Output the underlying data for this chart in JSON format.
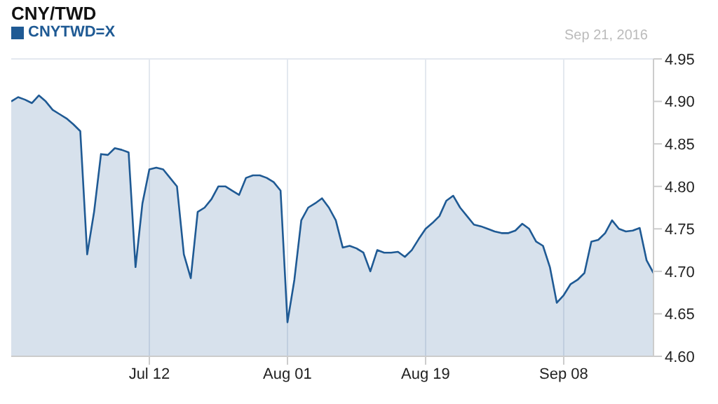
{
  "chart_data": {
    "type": "area",
    "title": "CNY/TWD",
    "subtitle": "Sep 21, 2016",
    "categories": [
      null,
      null,
      null,
      null,
      null,
      null,
      null,
      null,
      null,
      null,
      null,
      null,
      null,
      null,
      null,
      null,
      null,
      null,
      null,
      null,
      "Jul 12",
      null,
      null,
      null,
      null,
      null,
      null,
      null,
      null,
      null,
      null,
      null,
      null,
      null,
      null,
      null,
      null,
      null,
      null,
      null,
      "Aug 01",
      null,
      null,
      null,
      null,
      null,
      null,
      null,
      null,
      null,
      null,
      null,
      null,
      null,
      null,
      null,
      null,
      null,
      null,
      null,
      "Aug 19",
      null,
      null,
      null,
      null,
      null,
      null,
      null,
      null,
      null,
      null,
      null,
      null,
      null,
      null,
      null,
      null,
      null,
      null,
      null,
      "Sep 08",
      null,
      null,
      null,
      null,
      null,
      null,
      null,
      null,
      null,
      null,
      null,
      null,
      null
    ],
    "series": [
      {
        "name": "CNYTWD=X",
        "color": "#1f5a94",
        "values": [
          4.9,
          4.905,
          4.902,
          4.898,
          4.907,
          4.9,
          4.89,
          4.885,
          4.88,
          4.873,
          4.865,
          4.72,
          4.77,
          4.838,
          4.837,
          4.845,
          4.843,
          4.84,
          4.705,
          4.78,
          4.82,
          4.822,
          4.82,
          4.81,
          4.8,
          4.72,
          4.692,
          4.77,
          4.775,
          4.785,
          4.8,
          4.8,
          4.795,
          4.79,
          4.81,
          4.813,
          4.813,
          4.81,
          4.805,
          4.795,
          4.64,
          4.69,
          4.76,
          4.775,
          4.78,
          4.786,
          4.775,
          4.76,
          4.728,
          4.73,
          4.727,
          4.722,
          4.7,
          4.725,
          4.722,
          4.722,
          4.723,
          4.717,
          4.725,
          4.738,
          4.75,
          4.757,
          4.765,
          4.783,
          4.789,
          4.775,
          4.765,
          4.755,
          4.753,
          4.75,
          4.747,
          4.745,
          4.745,
          4.748,
          4.756,
          4.75,
          4.735,
          4.73,
          4.705,
          4.663,
          4.672,
          4.685,
          4.69,
          4.698,
          4.735,
          4.737,
          4.745,
          4.76,
          4.75,
          4.747,
          4.748,
          4.751,
          4.713,
          4.698
        ]
      }
    ],
    "ylim": [
      4.6,
      4.95
    ],
    "yticks": [
      {
        "value": 4.6,
        "label": "4.60"
      },
      {
        "value": 4.65,
        "label": "4.65"
      },
      {
        "value": 4.7,
        "label": "4.70"
      },
      {
        "value": 4.75,
        "label": "4.75"
      },
      {
        "value": 4.8,
        "label": "4.80"
      },
      {
        "value": 4.85,
        "label": "4.85"
      },
      {
        "value": 4.9,
        "label": "4.90"
      },
      {
        "value": 4.95,
        "label": "4.95"
      }
    ],
    "grid": true,
    "legend": "top left"
  }
}
